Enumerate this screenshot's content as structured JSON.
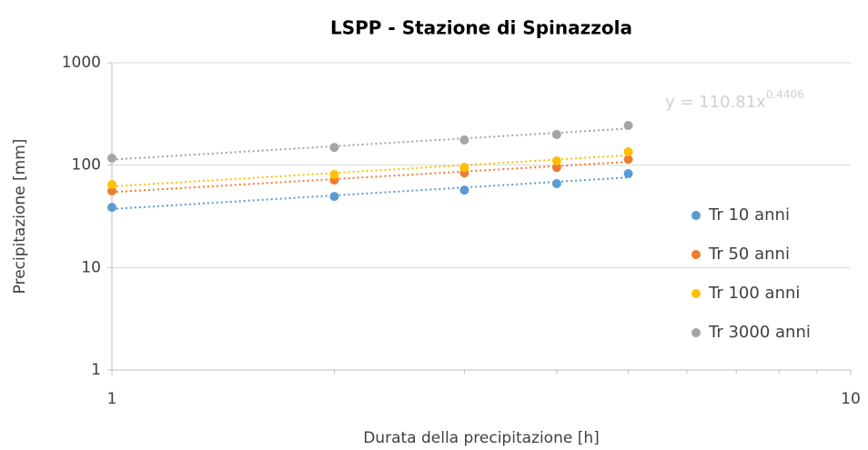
{
  "chart_data": {
    "type": "scatter",
    "title": "LSPP - Stazione di Spinazzola",
    "xlabel": "Durata della precipitazione [h]",
    "ylabel": "Precipitazione [mm]",
    "x": [
      1,
      2,
      3,
      4,
      5
    ],
    "series": [
      {
        "name": "Tr 10 anni",
        "color": "#5b9bd5",
        "values": [
          38.7,
          49.5,
          57,
          66,
          82.6
        ]
      },
      {
        "name": "Tr 50 anni",
        "color": "#ed7d31",
        "values": [
          56,
          71.5,
          84,
          95,
          114
        ]
      },
      {
        "name": "Tr 100 anni",
        "color": "#ffc000",
        "values": [
          64.6,
          81,
          95,
          110,
          135
        ]
      },
      {
        "name": "Tr 3000 anni",
        "color": "#a5a5a5",
        "values": [
          117,
          149,
          176,
          199,
          244
        ]
      }
    ],
    "trendline": "power",
    "annotation": {
      "base": "y = 110.81x",
      "sup": "0.4406"
    },
    "xlog": true,
    "ylog": true,
    "xlim": [
      1,
      10
    ],
    "ylim": [
      1,
      1000
    ],
    "xticks": [
      1,
      10
    ],
    "xminorticks": [
      2,
      3,
      4,
      5,
      6,
      7,
      8,
      9
    ],
    "yticks": [
      1,
      10,
      100,
      1000
    ],
    "grid": true,
    "legend": "right"
  }
}
